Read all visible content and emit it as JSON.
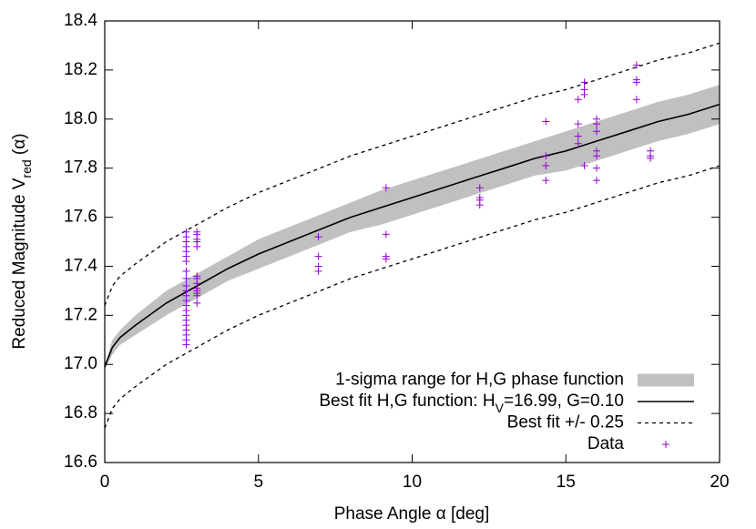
{
  "chart_data": {
    "type": "line",
    "xlabel": "Phase Angle α [deg]",
    "ylabel": [
      "Reduced Magnitude V",
      "red",
      " (α)"
    ],
    "xlim": [
      0,
      20
    ],
    "ylim": [
      16.6,
      18.4
    ],
    "xticks": [
      0,
      5,
      10,
      15,
      20
    ],
    "yticks": [
      16.6,
      16.8,
      {
        "value": 17,
        "label": "17.0"
      },
      17.2,
      17.4,
      17.6,
      17.8,
      {
        "value": 18,
        "label": "18.0"
      },
      18.2,
      18.4
    ],
    "legend": "bottom-right",
    "x": [
      0,
      0.25,
      0.5,
      1,
      2,
      3,
      4,
      5,
      6,
      7,
      8,
      9,
      10,
      11,
      12,
      13,
      14,
      15,
      16,
      17,
      18,
      19,
      20
    ],
    "series": [
      {
        "name": "1-sigma range for H,G phase function",
        "style": "band",
        "color": "#c0c0c0",
        "low": [
          16.98,
          17.04,
          17.08,
          17.12,
          17.2,
          17.27,
          17.34,
          17.39,
          17.44,
          17.49,
          17.54,
          17.57,
          17.61,
          17.65,
          17.69,
          17.73,
          17.77,
          17.79,
          17.83,
          17.87,
          17.91,
          17.94,
          17.98
        ],
        "high": [
          17.0,
          17.1,
          17.14,
          17.2,
          17.3,
          17.37,
          17.44,
          17.51,
          17.56,
          17.61,
          17.66,
          17.71,
          17.75,
          17.79,
          17.83,
          17.87,
          17.91,
          17.95,
          17.99,
          18.03,
          18.07,
          18.1,
          18.14
        ]
      },
      {
        "name": [
          "Best fit H,G function: H",
          "V",
          "=16.99, G=0.10"
        ],
        "style": "solid",
        "color": "#000000",
        "values": [
          16.99,
          17.07,
          17.11,
          17.16,
          17.25,
          17.32,
          17.39,
          17.45,
          17.5,
          17.55,
          17.6,
          17.64,
          17.68,
          17.72,
          17.76,
          17.8,
          17.84,
          17.87,
          17.91,
          17.95,
          17.99,
          18.02,
          18.06
        ]
      },
      {
        "name": "Best fit +/- 0.25",
        "style": "dashed",
        "color": "#000000",
        "low": [
          16.74,
          16.82,
          16.86,
          16.91,
          17.0,
          17.07,
          17.14,
          17.2,
          17.25,
          17.3,
          17.35,
          17.39,
          17.43,
          17.47,
          17.51,
          17.55,
          17.59,
          17.62,
          17.66,
          17.7,
          17.74,
          17.77,
          17.81
        ],
        "high": [
          17.24,
          17.32,
          17.36,
          17.41,
          17.5,
          17.57,
          17.64,
          17.7,
          17.75,
          17.8,
          17.85,
          17.89,
          17.93,
          17.97,
          18.01,
          18.05,
          18.09,
          18.12,
          18.16,
          18.2,
          18.24,
          18.27,
          18.31
        ]
      },
      {
        "name": "Data",
        "style": "points",
        "color": "#9400d3",
        "x": [
          2.65,
          2.65,
          2.65,
          2.65,
          2.65,
          2.65,
          2.65,
          2.65,
          2.65,
          2.65,
          2.65,
          2.65,
          2.65,
          2.65,
          2.65,
          2.65,
          2.65,
          2.65,
          2.65,
          2.65,
          2.65,
          2.65,
          3.0,
          3.0,
          3.0,
          3.0,
          3.0,
          3.0,
          3.0,
          3.0,
          3.0,
          3.0,
          3.0,
          3.0,
          3.0,
          6.95,
          6.95,
          6.95,
          6.95,
          9.15,
          9.15,
          9.15,
          9.15,
          12.2,
          12.2,
          12.2,
          12.2,
          14.35,
          14.35,
          14.35,
          14.35,
          15.4,
          15.4,
          15.4,
          15.4,
          15.6,
          15.6,
          15.6,
          15.6,
          16.0,
          16.0,
          16.0,
          16.0,
          16.0,
          16.0,
          16.0,
          17.3,
          17.3,
          17.3,
          17.3,
          17.75,
          17.75,
          17.75
        ],
        "values": [
          17.54,
          17.52,
          17.5,
          17.48,
          17.46,
          17.44,
          17.42,
          17.38,
          17.35,
          17.32,
          17.3,
          17.28,
          17.26,
          17.24,
          17.22,
          17.2,
          17.18,
          17.16,
          17.14,
          17.12,
          17.1,
          17.08,
          17.54,
          17.53,
          17.51,
          17.5,
          17.48,
          17.36,
          17.35,
          17.33,
          17.31,
          17.3,
          17.29,
          17.28,
          17.25,
          17.52,
          17.44,
          17.4,
          17.38,
          17.72,
          17.53,
          17.44,
          17.43,
          17.72,
          17.68,
          17.67,
          17.65,
          17.99,
          17.85,
          17.81,
          17.75,
          18.08,
          17.98,
          17.93,
          17.9,
          18.15,
          18.12,
          18.1,
          17.81,
          18.0,
          17.98,
          17.95,
          17.87,
          17.85,
          17.8,
          17.75,
          18.22,
          18.16,
          18.15,
          18.08,
          17.87,
          17.85,
          17.84
        ]
      }
    ]
  }
}
